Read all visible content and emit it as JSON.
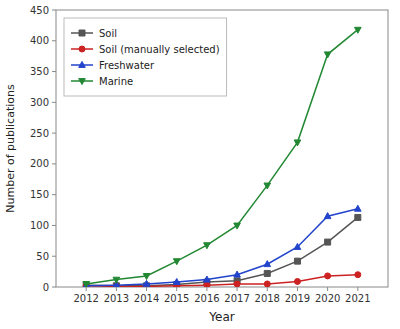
{
  "chart_data": {
    "type": "line",
    "xlabel": "Year",
    "ylabel": "Number of publications",
    "x": [
      2012,
      2013,
      2014,
      2015,
      2016,
      2017,
      2018,
      2019,
      2020,
      2021
    ],
    "xlim": [
      2011,
      2022
    ],
    "xticks": [
      2012,
      2013,
      2014,
      2015,
      2016,
      2017,
      2018,
      2019,
      2020,
      2021
    ],
    "ylim": [
      0,
      450
    ],
    "yticks": [
      0,
      50,
      100,
      150,
      200,
      250,
      300,
      350,
      400,
      450
    ],
    "grid": false,
    "legend": "upper left",
    "series": [
      {
        "name": "Soil",
        "color": "#555555",
        "marker": "square",
        "values": [
          3,
          2,
          2,
          4,
          8,
          10,
          22,
          42,
          73,
          113
        ]
      },
      {
        "name": "Soil (manually selected)",
        "color": "#cc2222",
        "marker": "circle",
        "values": [
          2,
          1,
          1,
          2,
          3,
          5,
          5,
          9,
          18,
          20
        ]
      },
      {
        "name": "Freshwater",
        "color": "#2244cc",
        "marker": "triangle-up",
        "values": [
          2,
          3,
          5,
          8,
          12,
          20,
          37,
          65,
          115,
          127
        ]
      },
      {
        "name": "Marine",
        "color": "#228833",
        "marker": "triangle-down",
        "values": [
          5,
          12,
          18,
          42,
          68,
          100,
          165,
          235,
          378,
          418
        ]
      }
    ]
  }
}
